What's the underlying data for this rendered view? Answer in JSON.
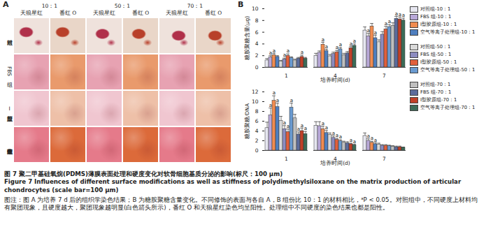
{
  "panel_a": {
    "label": "A",
    "ratios": [
      "10：1",
      "50：1",
      "70：1"
    ],
    "stains": [
      "天狼星红",
      "番红 O"
    ],
    "groups": [
      "对照组",
      "FBS 组",
      "Ⅰ型胶原组",
      "空气等离子处理组"
    ]
  },
  "panel_b": {
    "label": "B"
  },
  "chart_data": [
    {
      "type": "bar",
      "y_label": "糖胺聚糖含量(μg)",
      "x_label": "培养时间(d)",
      "categories": [
        1,
        4,
        7
      ],
      "ylim": [
        0,
        10
      ],
      "yticks": [
        0,
        2,
        4,
        6,
        8,
        10
      ],
      "legend": "right",
      "series": [
        {
          "name": "对照组-10：1",
          "color": "#e6e6f0",
          "values": [
            1.2,
            2.0,
            6.3
          ],
          "errors": [
            0.3,
            0.4,
            0.6
          ],
          "annotations": [
            null,
            null,
            null
          ]
        },
        {
          "name": "FBS 组-10：1",
          "color": "#b8a8d8",
          "values": [
            1.7,
            2.5,
            5.3
          ],
          "errors": [
            0.3,
            0.3,
            0.5
          ],
          "annotations": [
            "a",
            null,
            "a"
          ]
        },
        {
          "name": "Ⅰ型胶原组-10：1",
          "color": "#f08c50",
          "values": [
            2.1,
            3.9,
            7.0
          ],
          "errors": [
            0.3,
            0.4,
            0.5
          ],
          "annotations": [
            "a",
            "a",
            null
          ]
        },
        {
          "name": "空气等离子处理组-10：1",
          "color": "#4f7fbf",
          "values": [
            1.8,
            2.8,
            5.0
          ],
          "errors": [
            0.2,
            0.3,
            0.5
          ],
          "annotations": [
            null,
            "a",
            "a"
          ]
        },
        {
          "name": "对照组-50：1",
          "color": "#d9d9d9",
          "values": [
            1.0,
            1.9,
            4.3
          ],
          "errors": [
            0.2,
            0.3,
            0.4
          ],
          "annotations": [
            null,
            null,
            null
          ]
        },
        {
          "name": "FBS 组-50：1",
          "color": "#8c8cc0",
          "values": [
            1.4,
            2.3,
            5.6
          ],
          "errors": [
            0.2,
            0.3,
            0.5
          ],
          "annotations": [
            "a",
            null,
            null
          ]
        },
        {
          "name": "Ⅰ型胶原组-50：1",
          "color": "#e0603c",
          "values": [
            2.0,
            2.6,
            6.5
          ],
          "errors": [
            0.3,
            0.3,
            0.5
          ],
          "annotations": [
            "a",
            "a",
            "a"
          ]
        },
        {
          "name": "空气等离子处理组-50：1",
          "color": "#6a9ad0",
          "values": [
            1.6,
            3.1,
            6.9
          ],
          "errors": [
            0.2,
            0.3,
            0.4
          ],
          "annotations": [
            null,
            "a",
            "a"
          ]
        },
        {
          "name": "对照组-70：1",
          "color": "#bfbfbf",
          "values": [
            1.2,
            2.1,
            7.1
          ],
          "errors": [
            0.2,
            0.3,
            0.5
          ],
          "annotations": [
            null,
            null,
            null
          ]
        },
        {
          "name": "FBS 组-70：1",
          "color": "#5c6c9c",
          "values": [
            1.5,
            2.4,
            8.3
          ],
          "errors": [
            0.2,
            0.3,
            0.4
          ],
          "annotations": [
            null,
            null,
            "a"
          ]
        },
        {
          "name": "Ⅰ型胶原组-70：1",
          "color": "#c04028",
          "values": [
            1.8,
            3.3,
            8.2
          ],
          "errors": [
            0.3,
            0.3,
            0.4
          ],
          "annotations": [
            "a",
            "a",
            "a"
          ]
        },
        {
          "name": "空气等离子处理组-70：1",
          "color": "#3c6c58",
          "values": [
            1.5,
            3.7,
            8.0
          ],
          "errors": [
            0.2,
            0.3,
            0.4
          ],
          "annotations": [
            null,
            "a",
            "a"
          ]
        }
      ]
    },
    {
      "type": "bar",
      "y_label": "糖胺聚糖/DNA",
      "x_label": "培养时间(d)",
      "categories": [
        1,
        4,
        7
      ],
      "ylim": [
        0,
        12
      ],
      "yticks": [
        0,
        2,
        4,
        6,
        8,
        10,
        12
      ],
      "series": [
        {
          "name": "对照组-10：1",
          "color": "#e6e6f0",
          "values": [
            4.6,
            5.1,
            3.0
          ],
          "errors": [
            1.2,
            0.8,
            0.6
          ],
          "annotations": [
            null,
            null,
            null
          ]
        },
        {
          "name": "FBS 组-10：1",
          "color": "#b8a8d8",
          "values": [
            7.2,
            5.0,
            2.0
          ],
          "errors": [
            1.5,
            0.9,
            0.4
          ],
          "annotations": [
            "a",
            null,
            "a"
          ]
        },
        {
          "name": "Ⅰ型胶原组-10：1",
          "color": "#f08c50",
          "values": [
            10.2,
            4.4,
            1.6
          ],
          "errors": [
            1.0,
            0.6,
            0.3
          ],
          "annotations": [
            "a",
            "a",
            "a"
          ]
        },
        {
          "name": "空气等离子处理组-10：1",
          "color": "#4f7fbf",
          "values": [
            8.9,
            3.6,
            1.3
          ],
          "errors": [
            0.8,
            0.5,
            0.3
          ],
          "annotations": [
            "a",
            "a",
            "a"
          ]
        },
        {
          "name": "对照组-50：1",
          "color": "#d9d9d9",
          "values": [
            6.1,
            3.2,
            1.2
          ],
          "errors": [
            0.9,
            0.4,
            0.3
          ],
          "annotations": [
            null,
            null,
            null
          ]
        },
        {
          "name": "FBS 组-50：1",
          "color": "#8c8cc0",
          "values": [
            4.4,
            2.6,
            1.0
          ],
          "errors": [
            0.7,
            0.4,
            0.2
          ],
          "annotations": [
            "a",
            "a",
            null
          ]
        },
        {
          "name": "Ⅰ型胶原组-50：1",
          "color": "#e0603c",
          "values": [
            3.8,
            2.2,
            1.0
          ],
          "errors": [
            0.6,
            0.3,
            0.2
          ],
          "annotations": [
            "a",
            "a",
            null
          ]
        },
        {
          "name": "空气等离子处理组-50：1",
          "color": "#6a9ad0",
          "values": [
            8.8,
            1.9,
            0.9
          ],
          "errors": [
            0.9,
            0.3,
            0.2
          ],
          "annotations": [
            "a",
            "a",
            null
          ]
        },
        {
          "name": "对照组-70：1",
          "color": "#bfbfbf",
          "values": [
            6.6,
            1.6,
            0.8
          ],
          "errors": [
            0.8,
            0.3,
            0.2
          ],
          "annotations": [
            null,
            null,
            null
          ]
        },
        {
          "name": "FBS 组-70：1",
          "color": "#5c6c9c",
          "values": [
            3.3,
            1.5,
            0.7
          ],
          "errors": [
            0.5,
            0.3,
            0.2
          ],
          "annotations": [
            "a",
            null,
            null
          ]
        },
        {
          "name": "Ⅰ型胶原组-70：1",
          "color": "#c04028",
          "values": [
            4.0,
            1.3,
            0.7
          ],
          "errors": [
            0.6,
            0.2,
            0.2
          ],
          "annotations": [
            "a",
            "a",
            null
          ]
        },
        {
          "name": "空气等离子处理组-70：1",
          "color": "#3c6c58",
          "values": [
            3.4,
            1.1,
            0.6
          ],
          "errors": [
            0.5,
            0.2,
            0.1
          ],
          "annotations": [
            "a",
            "a",
            null
          ]
        }
      ]
    }
  ],
  "caption": {
    "title_cn": "图 7  聚二甲基硅氧烷(PDMS)薄膜表面处理和硬度变化对软骨细胞基质分泌的影响(标尺：100 μm)",
    "title_en": "Figure 7  Influences of different surface modifications as well as stiffness of polydimethylsiloxane on the matrix production of articular chondrocytes (scale bar=100 μm)",
    "note": "图注：图 A 为培养 7 d 后的组织学染色结果；B 为糖胺聚糖含量变化。不同修饰的表面与各自 A，B 组份比 10：1 的材料相比，ᵃP < 0.05。对照组中，不同硬度上材料均有聚团现象，且硬度越大，聚团现象越明显(白色箭头所示)，番红 O 和天狼星红染色均呈阳性。处理组中不同硬度的染色结果也都是阳性。"
  }
}
